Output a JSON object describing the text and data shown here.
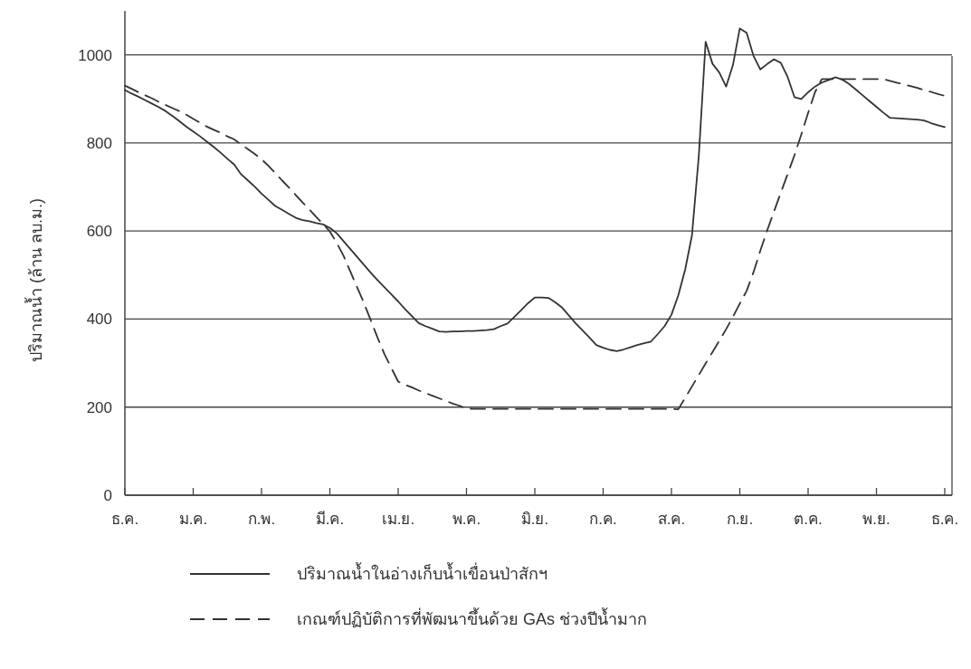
{
  "chart_data": {
    "type": "line",
    "ylabel": "ปริมาณน้ำ (ล้าน ลบ.ม.)",
    "categories": [
      "ธ.ค.",
      null,
      null,
      null,
      null,
      null,
      null,
      null,
      null,
      null,
      "ม.ค.",
      null,
      null,
      null,
      null,
      null,
      null,
      null,
      null,
      null,
      "ก.พ.",
      null,
      null,
      null,
      null,
      null,
      null,
      null,
      null,
      null,
      "มี.ค.",
      null,
      null,
      null,
      null,
      null,
      null,
      null,
      null,
      null,
      "เม.ย.",
      null,
      null,
      null,
      null,
      null,
      null,
      null,
      null,
      null,
      "พ.ค.",
      null,
      null,
      null,
      null,
      null,
      null,
      null,
      null,
      null,
      "มิ.ย.",
      null,
      null,
      null,
      null,
      null,
      null,
      null,
      null,
      null,
      "ก.ค.",
      null,
      null,
      null,
      null,
      null,
      null,
      null,
      null,
      null,
      "ส.ค.",
      null,
      null,
      null,
      null,
      null,
      null,
      null,
      null,
      null,
      "ก.ย.",
      null,
      null,
      null,
      null,
      null,
      null,
      null,
      null,
      null,
      "ต.ค.",
      null,
      null,
      null,
      null,
      null,
      null,
      null,
      null,
      null,
      "พ.ย.",
      null,
      null,
      null,
      null,
      null,
      null,
      null,
      null,
      null,
      "ธ.ค."
    ],
    "ylim": [
      0,
      1100
    ],
    "yticks": [
      0,
      200,
      400,
      600,
      800,
      1000
    ],
    "grid": "y",
    "legend": "bottom",
    "series": [
      {
        "name": "ปริมาณน้ำในอ่างเก็บน้ำเขื่อนป่าสักฯ",
        "color": "#333333",
        "line_style": "solid",
        "values": [
          920,
          912,
          905,
          897,
          889,
          881,
          872,
          861,
          849,
          837,
          826,
          815,
          803,
          791,
          778,
          764,
          751,
          729,
          715,
          701,
          685,
          671,
          657,
          648,
          639,
          630,
          625,
          622,
          618,
          615,
          607,
          595,
          577,
          559,
          541,
          523,
          505,
          488,
          472,
          456,
          440,
          423,
          407,
          391,
          384,
          378,
          372,
          371,
          372,
          372,
          373,
          373,
          374,
          375,
          377,
          384,
          390,
          405,
          420,
          436,
          449,
          449,
          448,
          438,
          426,
          408,
          390,
          374,
          358,
          341,
          335,
          330,
          327,
          331,
          336,
          341,
          345,
          349,
          366,
          384,
          410,
          454,
          512,
          590,
          770,
          1030,
          980,
          960,
          928,
          977,
          1060,
          1050,
          998,
          967,
          979,
          990,
          982,
          950,
          904,
          900,
          915,
          928,
          937,
          943,
          949,
          944,
          934,
          921,
          908,
          895,
          882,
          869,
          857,
          856,
          855,
          854,
          853,
          851,
          845,
          840,
          836
        ]
      },
      {
        "name": "เกณฑ์ปฏิบัติการที่พัฒนาขึ้นด้วย GAs ช่วงปีน้ำมาก",
        "color": "#333333",
        "line_style": "dashed",
        "values": [
          930,
          923,
          915,
          908,
          901,
          893,
          886,
          879,
          872,
          864,
          855,
          846,
          837,
          830,
          823,
          815,
          808,
          797,
          786,
          775,
          763,
          748,
          732,
          715,
          699,
          682,
          665,
          649,
          632,
          616,
          599,
          573,
          544,
          508,
          472,
          436,
          397,
          357,
          320,
          289,
          258,
          251,
          245,
          238,
          232,
          226,
          220,
          214,
          208,
          203,
          197,
          196,
          196,
          196,
          196,
          196,
          196,
          196,
          196,
          196,
          196,
          196,
          196,
          196,
          196,
          196,
          196,
          196,
          196,
          196,
          196,
          196,
          196,
          196,
          196,
          196,
          196,
          196,
          196,
          196,
          196,
          195,
          221,
          247,
          273,
          299,
          325,
          351,
          377,
          405,
          435,
          464,
          506,
          555,
          601,
          644,
          687,
          729,
          772,
          819,
          868,
          915,
          945,
          945,
          945,
          945,
          945,
          945,
          945,
          945,
          945,
          945,
          941,
          937,
          933,
          929,
          925,
          920,
          916,
          911,
          907
        ]
      }
    ]
  }
}
